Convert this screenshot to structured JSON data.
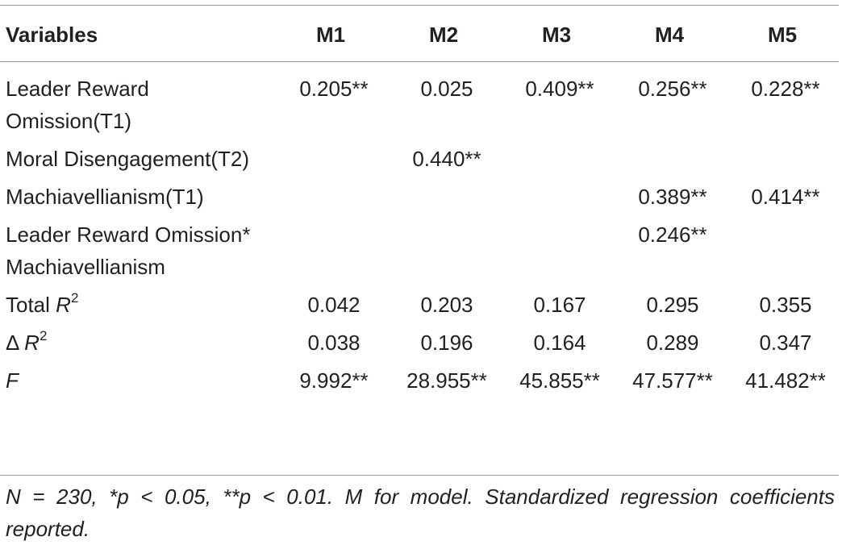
{
  "table": {
    "header": {
      "variables": "Variables",
      "models": [
        "M1",
        "M2",
        "M3",
        "M4",
        "M5"
      ]
    },
    "rows": [
      {
        "label": "Leader Reward Omission(T1)",
        "values": [
          "0.205**",
          "0.025",
          "0.409**",
          "0.256**",
          "0.228**"
        ]
      },
      {
        "label": "Moral Disengagement(T2)",
        "values": [
          "",
          "0.440**",
          "",
          "",
          ""
        ]
      },
      {
        "label": "Machiavellianism(T1)",
        "values": [
          "",
          "",
          "",
          "0.389**",
          "0.414**"
        ]
      },
      {
        "label": "Leader Reward Omission* Machiavellianism",
        "values": [
          "",
          "",
          "",
          "0.246**",
          ""
        ]
      },
      {
        "label_prefix": "Total ",
        "label_italic": "R",
        "label_sup": "2",
        "values": [
          "0.042",
          "0.203",
          "0.167",
          "0.295",
          "0.355"
        ]
      },
      {
        "label_prefix": "Δ ",
        "label_italic": "R",
        "label_sup": "2",
        "values": [
          "0.038",
          "0.196",
          "0.164",
          "0.289",
          "0.347"
        ]
      },
      {
        "label_italic_only": "F",
        "values": [
          "9.992**",
          "28.955**",
          "45.855**",
          "47.577**",
          "41.482**"
        ]
      }
    ],
    "footnote": "N = 230, *p < 0.05, **p < 0.01. M for model. Standardized regression coefficients reported."
  }
}
